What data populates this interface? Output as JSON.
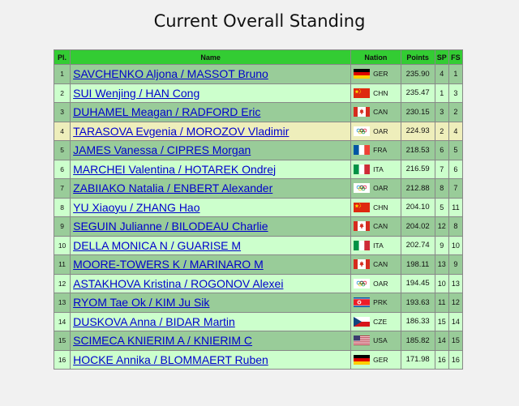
{
  "title": "Current Overall Standing",
  "columns": {
    "pl": "Pl.",
    "name": "Name",
    "nation": "Nation",
    "points": "Points",
    "sp": "SP",
    "fs": "FS"
  },
  "rows": [
    {
      "pl": "1",
      "name": "SAVCHENKO Aljona / MASSOT Bruno",
      "flag": "ger-flag-icon",
      "nation": "GER",
      "points": "235.90",
      "sp": "4",
      "fs": "1",
      "style": "odd"
    },
    {
      "pl": "2",
      "name": "SUI Wenjing / HAN Cong",
      "flag": "chn-flag-icon",
      "nation": "CHN",
      "points": "235.47",
      "sp": "1",
      "fs": "3",
      "style": "even"
    },
    {
      "pl": "3",
      "name": "DUHAMEL Meagan / RADFORD Eric",
      "flag": "can-flag-icon",
      "nation": "CAN",
      "points": "230.15",
      "sp": "3",
      "fs": "2",
      "style": "odd"
    },
    {
      "pl": "4",
      "name": "TARASOVA Evgenia / MOROZOV Vladimir",
      "flag": "olympic-flag-icon",
      "nation": "OAR",
      "points": "224.93",
      "sp": "2",
      "fs": "4",
      "style": "hl"
    },
    {
      "pl": "5",
      "name": "JAMES Vanessa / CIPRES Morgan",
      "flag": "fra-flag-icon",
      "nation": "FRA",
      "points": "218.53",
      "sp": "6",
      "fs": "5",
      "style": "odd"
    },
    {
      "pl": "6",
      "name": "MARCHEI Valentina / HOTAREK Ondrej",
      "flag": "ita-flag-icon",
      "nation": "ITA",
      "points": "216.59",
      "sp": "7",
      "fs": "6",
      "style": "even"
    },
    {
      "pl": "7",
      "name": "ZABIIAKO Natalia / ENBERT Alexander",
      "flag": "olympic-flag-icon",
      "nation": "OAR",
      "points": "212.88",
      "sp": "8",
      "fs": "7",
      "style": "odd"
    },
    {
      "pl": "8",
      "name": "YU Xiaoyu / ZHANG Hao",
      "flag": "chn-flag-icon",
      "nation": "CHN",
      "points": "204.10",
      "sp": "5",
      "fs": "11",
      "style": "even"
    },
    {
      "pl": "9",
      "name": "SEGUIN Julianne / BILODEAU Charlie",
      "flag": "can-flag-icon",
      "nation": "CAN",
      "points": "204.02",
      "sp": "12",
      "fs": "8",
      "style": "odd"
    },
    {
      "pl": "10",
      "name": "DELLA MONICA N / GUARISE M",
      "flag": "ita-flag-icon",
      "nation": "ITA",
      "points": "202.74",
      "sp": "9",
      "fs": "10",
      "style": "even"
    },
    {
      "pl": "11",
      "name": "MOORE-TOWERS K / MARINARO M",
      "flag": "can-flag-icon",
      "nation": "CAN",
      "points": "198.11",
      "sp": "13",
      "fs": "9",
      "style": "odd"
    },
    {
      "pl": "12",
      "name": "ASTAKHOVA Kristina / ROGONOV Alexei",
      "flag": "olympic-flag-icon",
      "nation": "OAR",
      "points": "194.45",
      "sp": "10",
      "fs": "13",
      "style": "even"
    },
    {
      "pl": "13",
      "name": "RYOM Tae Ok / KIM Ju Sik",
      "flag": "prk-flag-icon",
      "nation": "PRK",
      "points": "193.63",
      "sp": "11",
      "fs": "12",
      "style": "odd"
    },
    {
      "pl": "14",
      "name": "DUSKOVA Anna / BIDAR Martin",
      "flag": "cze-flag-icon",
      "nation": "CZE",
      "points": "186.33",
      "sp": "15",
      "fs": "14",
      "style": "even"
    },
    {
      "pl": "15",
      "name": "SCIMECA KNIERIM A / KNIERIM C",
      "flag": "usa-flag-icon",
      "nation": "USA",
      "points": "185.82",
      "sp": "14",
      "fs": "15",
      "style": "odd"
    },
    {
      "pl": "16",
      "name": "HOCKE Annika / BLOMMAERT Ruben",
      "flag": "ger-flag-icon",
      "nation": "GER",
      "points": "171.98",
      "sp": "16",
      "fs": "16",
      "style": "even"
    }
  ]
}
